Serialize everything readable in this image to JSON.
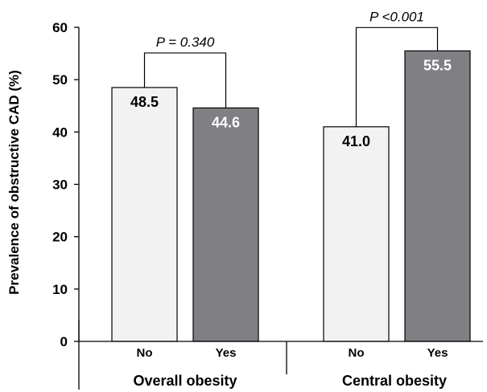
{
  "chart_data": {
    "type": "bar",
    "ylabel": "Prevalence of obstructive CAD (%)",
    "ylim": [
      0,
      60
    ],
    "yticks": [
      0,
      10,
      20,
      30,
      40,
      50,
      60
    ],
    "groups": [
      {
        "name": "Overall obesity",
        "categories": [
          "No",
          "Yes"
        ],
        "values": [
          48.5,
          44.6
        ],
        "value_labels": [
          "48.5",
          "44.6"
        ],
        "p_value": "P = 0.340"
      },
      {
        "name": "Central obesity",
        "categories": [
          "No",
          "Yes"
        ],
        "values": [
          41.0,
          55.5
        ],
        "value_labels": [
          "41.0",
          "55.5"
        ],
        "p_value": "P <0.001"
      }
    ],
    "colors": {
      "No": "#f2f2f2",
      "Yes": "#808084"
    },
    "value_label_colors": {
      "No": "#000000",
      "Yes": "#ffffff"
    }
  }
}
